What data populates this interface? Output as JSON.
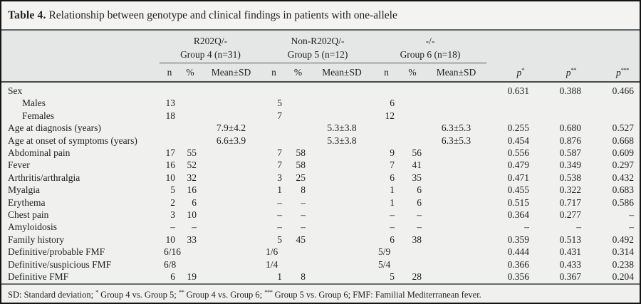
{
  "title": {
    "bold": "Table 4.",
    "rest": " Relationship between genotype and clinical findings in patients with one-allele"
  },
  "header": {
    "groups": [
      {
        "line1": "R202Q/-",
        "line2": "Group 4 (n=31)"
      },
      {
        "line1": "Non-R202Q/-",
        "line2": "Group 5 (n=12)"
      },
      {
        "line1": "-/-",
        "line2": "Group 6 (n=18)"
      }
    ],
    "subcols": [
      "n",
      "%",
      "Mean±SD"
    ],
    "p_cols": [
      {
        "base": "p",
        "sup": "*"
      },
      {
        "base": "p",
        "sup": "**"
      },
      {
        "base": "p",
        "sup": "***"
      }
    ]
  },
  "rows": [
    {
      "label": "Sex",
      "indent": false,
      "g4": [
        "",
        "",
        ""
      ],
      "g5": [
        "",
        "",
        ""
      ],
      "g6": [
        "",
        "",
        ""
      ],
      "p": [
        "0.631",
        "0.388",
        "0.466"
      ]
    },
    {
      "label": "Males",
      "indent": true,
      "g4": [
        "13",
        "",
        ""
      ],
      "g5": [
        "5",
        "",
        ""
      ],
      "g6": [
        "6",
        "",
        ""
      ],
      "p": [
        "",
        "",
        ""
      ]
    },
    {
      "label": "Females",
      "indent": true,
      "g4": [
        "18",
        "",
        ""
      ],
      "g5": [
        "7",
        "",
        ""
      ],
      "g6": [
        "12",
        "",
        ""
      ],
      "p": [
        "",
        "",
        ""
      ]
    },
    {
      "label": "Age at diagnosis (years)",
      "indent": false,
      "g4": [
        "",
        "",
        "7.9±4.2"
      ],
      "g5": [
        "",
        "",
        "5.3±3.8"
      ],
      "g6": [
        "",
        "",
        "6.3±5.3"
      ],
      "p": [
        "0.255",
        "0.680",
        "0.527"
      ]
    },
    {
      "label": "Age at onset of symptoms (years)",
      "indent": false,
      "g4": [
        "",
        "",
        "6.6±3.9"
      ],
      "g5": [
        "",
        "",
        "5.3±3.8"
      ],
      "g6": [
        "",
        "",
        "6.3±5.3"
      ],
      "p": [
        "0.454",
        "0.876",
        "0.668"
      ]
    },
    {
      "label": "Abdominal pain",
      "indent": false,
      "g4": [
        "17",
        "55",
        ""
      ],
      "g5": [
        "7",
        "58",
        ""
      ],
      "g6": [
        "9",
        "56",
        ""
      ],
      "p": [
        "0.556",
        "0.587",
        "0.609"
      ]
    },
    {
      "label": "Fever",
      "indent": false,
      "g4": [
        "16",
        "52",
        ""
      ],
      "g5": [
        "7",
        "58",
        ""
      ],
      "g6": [
        "7",
        "41",
        ""
      ],
      "p": [
        "0.479",
        "0.349",
        "0.297"
      ]
    },
    {
      "label": "Arthritis/arthralgia",
      "indent": false,
      "g4": [
        "10",
        "32",
        ""
      ],
      "g5": [
        "3",
        "25",
        ""
      ],
      "g6": [
        "6",
        "35",
        ""
      ],
      "p": [
        "0.471",
        "0.538",
        "0.432"
      ]
    },
    {
      "label": "Myalgia",
      "indent": false,
      "g4": [
        "5",
        "16",
        ""
      ],
      "g5": [
        "1",
        "8",
        ""
      ],
      "g6": [
        "1",
        "6",
        ""
      ],
      "p": [
        "0.455",
        "0.322",
        "0.683"
      ]
    },
    {
      "label": "Erythema",
      "indent": false,
      "g4": [
        "2",
        "6",
        ""
      ],
      "g5": [
        "–",
        "–",
        ""
      ],
      "g6": [
        "1",
        "6",
        ""
      ],
      "p": [
        "0.515",
        "0.717",
        "0.586"
      ]
    },
    {
      "label": "Chest pain",
      "indent": false,
      "g4": [
        "3",
        "10",
        ""
      ],
      "g5": [
        "–",
        "–",
        ""
      ],
      "g6": [
        "–",
        "–",
        ""
      ],
      "p": [
        "0.364",
        "0.277",
        "–"
      ]
    },
    {
      "label": "Amyloidosis",
      "indent": false,
      "g4": [
        "–",
        "–",
        ""
      ],
      "g5": [
        "–",
        "–",
        ""
      ],
      "g6": [
        "–",
        "–",
        ""
      ],
      "p": [
        "–",
        "–",
        "–"
      ]
    },
    {
      "label": "Family history",
      "indent": false,
      "g4": [
        "10",
        "33",
        ""
      ],
      "g5": [
        "5",
        "45",
        ""
      ],
      "g6": [
        "6",
        "38",
        ""
      ],
      "p": [
        "0.359",
        "0.513",
        "0.492"
      ]
    },
    {
      "label": "Definitive/probable FMF",
      "indent": false,
      "g4": [
        "6/16",
        "",
        ""
      ],
      "g5": [
        "1/6",
        "",
        ""
      ],
      "g6": [
        "5/9",
        "",
        ""
      ],
      "p": [
        "0.444",
        "0.431",
        "0.314"
      ]
    },
    {
      "label": "Definitive/suspicious FMF",
      "indent": false,
      "g4": [
        "6/8",
        "",
        ""
      ],
      "g5": [
        "1/4",
        "",
        ""
      ],
      "g6": [
        "5/4",
        "",
        ""
      ],
      "p": [
        "0.366",
        "0.433",
        "0.238"
      ]
    },
    {
      "label": "Definitive FMF",
      "indent": false,
      "g4": [
        "6",
        "19",
        ""
      ],
      "g5": [
        "1",
        "8",
        ""
      ],
      "g6": [
        "5",
        "28",
        ""
      ],
      "p": [
        "0.356",
        "0.367",
        "0.204"
      ]
    }
  ],
  "footnote": {
    "segments": [
      {
        "text": "SD: Standard deviation; "
      },
      {
        "sup": "*"
      },
      {
        "text": " Group 4 vs. Group 5; "
      },
      {
        "sup": "**"
      },
      {
        "text": " Group 4 vs. Group 6; "
      },
      {
        "sup": "***"
      },
      {
        "text": " Group 5 vs. Group 6; FMF: Familial Mediterranean fever."
      }
    ]
  },
  "colors": {
    "frame_border": "#141414",
    "title_bg": "#f3f3f2",
    "header_bg": "#e5e6e6",
    "body_bg": "#f0f1ef",
    "rule": "#636666",
    "text": "#1f1f1f"
  }
}
